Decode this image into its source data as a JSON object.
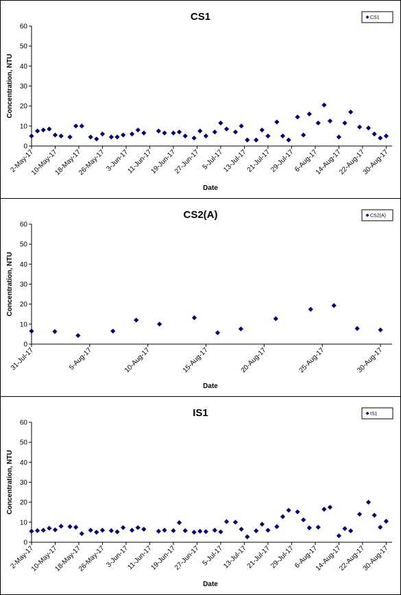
{
  "chart_data": [
    {
      "type": "scatter",
      "title": "CS1",
      "xlabel": "Date",
      "ylabel": "Concentration, NTU",
      "ylim": [
        0,
        60
      ],
      "yticks": [
        "0",
        "10",
        "20",
        "30",
        "40",
        "50",
        "60"
      ],
      "xlim": [
        "2-May-17",
        "1-Sep-17"
      ],
      "xticks": [
        "2-May-17",
        "10-May-17",
        "18-May-17",
        "26-May-17",
        "3-Jun-17",
        "11-Jun-17",
        "19-Jun-17",
        "27-Jun-17",
        "5-Jul-17",
        "13-Jul-17",
        "21-Jul-17",
        "29-Jul-17",
        "6-Aug-17",
        "14-Aug-17",
        "22-Aug-17",
        "30-Aug-17"
      ],
      "legend": "top-right",
      "grid": false,
      "color": "#000080",
      "series": [
        {
          "name": "CS1",
          "points": [
            [
              "2-May-17",
              5.0
            ],
            [
              "4-May-17",
              7.5
            ],
            [
              "6-May-17",
              8.0
            ],
            [
              "8-May-17",
              8.5
            ],
            [
              "10-May-17",
              5.5
            ],
            [
              "12-May-17",
              5.0
            ],
            [
              "15-May-17",
              4.5
            ],
            [
              "17-May-17",
              10.0
            ],
            [
              "19-May-17",
              10.0
            ],
            [
              "22-May-17",
              4.5
            ],
            [
              "24-May-17",
              3.5
            ],
            [
              "26-May-17",
              6.0
            ],
            [
              "29-May-17",
              4.5
            ],
            [
              "31-May-17",
              4.5
            ],
            [
              "2-Jun-17",
              5.5
            ],
            [
              "5-Jun-17",
              6.0
            ],
            [
              "7-Jun-17",
              8.0
            ],
            [
              "9-Jun-17",
              6.5
            ],
            [
              "14-Jun-17",
              7.5
            ],
            [
              "16-Jun-17",
              6.5
            ],
            [
              "19-Jun-17",
              6.5
            ],
            [
              "21-Jun-17",
              7.0
            ],
            [
              "23-Jun-17",
              5.0
            ],
            [
              "26-Jun-17",
              4.0
            ],
            [
              "28-Jun-17",
              7.5
            ],
            [
              "30-Jun-17",
              5.0
            ],
            [
              "3-Jul-17",
              7.0
            ],
            [
              "5-Jul-17",
              11.5
            ],
            [
              "7-Jul-17",
              8.5
            ],
            [
              "10-Jul-17",
              7.0
            ],
            [
              "12-Jul-17",
              10.0
            ],
            [
              "14-Jul-17",
              3.0
            ],
            [
              "17-Jul-17",
              3.0
            ],
            [
              "19-Jul-17",
              8.0
            ],
            [
              "21-Jul-17",
              5.0
            ],
            [
              "24-Jul-17",
              12.0
            ],
            [
              "26-Jul-17",
              5.0
            ],
            [
              "28-Jul-17",
              3.0
            ],
            [
              "31-Jul-17",
              14.5
            ],
            [
              "2-Aug-17",
              5.5
            ],
            [
              "4-Aug-17",
              16.0
            ],
            [
              "7-Aug-17",
              11.5
            ],
            [
              "9-Aug-17",
              20.5
            ],
            [
              "11-Aug-17",
              12.5
            ],
            [
              "14-Aug-17",
              4.5
            ],
            [
              "16-Aug-17",
              11.5
            ],
            [
              "18-Aug-17",
              17.0
            ],
            [
              "21-Aug-17",
              9.5
            ],
            [
              "24-Aug-17",
              9.0
            ],
            [
              "26-Aug-17",
              6.0
            ],
            [
              "28-Aug-17",
              4.0
            ],
            [
              "30-Aug-17",
              5.0
            ]
          ]
        }
      ]
    },
    {
      "type": "scatter",
      "title": "CS2(A)",
      "xlabel": "Date",
      "ylabel": "Concentration, NTU",
      "ylim": [
        0,
        60
      ],
      "yticks": [
        "0",
        "10",
        "20",
        "30",
        "40",
        "50",
        "60"
      ],
      "xlim": [
        "31-Jul-17",
        "31-Aug-17"
      ],
      "xticks": [
        "31-Jul-17",
        "5-Aug-17",
        "10-Aug-17",
        "15-Aug-17",
        "20-Aug-17",
        "25-Aug-17",
        "30-Aug-17"
      ],
      "legend": "top-right",
      "grid": false,
      "color": "#000080",
      "series": [
        {
          "name": "CS2(A)",
          "points": [
            [
              "31-Jul-17",
              6.5
            ],
            [
              "2-Aug-17",
              6.3
            ],
            [
              "4-Aug-17",
              4.3
            ],
            [
              "7-Aug-17",
              6.5
            ],
            [
              "9-Aug-17",
              12.0
            ],
            [
              "11-Aug-17",
              10.0
            ],
            [
              "14-Aug-17",
              13.2
            ],
            [
              "16-Aug-17",
              5.7
            ],
            [
              "18-Aug-17",
              7.6
            ],
            [
              "21-Aug-17",
              12.7
            ],
            [
              "24-Aug-17",
              17.4
            ],
            [
              "26-Aug-17",
              19.3
            ],
            [
              "28-Aug-17",
              7.8
            ],
            [
              "30-Aug-17",
              7.1
            ]
          ]
        }
      ]
    },
    {
      "type": "scatter",
      "title": "IS1",
      "xlabel": "Date",
      "ylabel": "Concentration, NTU",
      "ylim": [
        0,
        60
      ],
      "yticks": [
        "0",
        "10",
        "20",
        "30",
        "40",
        "50",
        "60"
      ],
      "xlim": [
        "2-May-17",
        "1-Sep-17"
      ],
      "xticks": [
        "2-May-17",
        "10-May-17",
        "18-May-17",
        "26-May-17",
        "3-Jun-17",
        "11-Jun-17",
        "19-Jun-17",
        "27-Jun-17",
        "5-Jul-17",
        "13-Jul-17",
        "21-Jul-17",
        "29-Jul-17",
        "6-Aug-17",
        "14-Aug-17",
        "22-Aug-17",
        "30-Aug-17"
      ],
      "legend": "top-right",
      "grid": false,
      "color": "#000080",
      "series": [
        {
          "name": "IS1",
          "points": [
            [
              "2-May-17",
              5.5
            ],
            [
              "4-May-17",
              5.8
            ],
            [
              "6-May-17",
              6.0
            ],
            [
              "8-May-17",
              7.0
            ],
            [
              "10-May-17",
              6.2
            ],
            [
              "12-May-17",
              8.0
            ],
            [
              "15-May-17",
              7.8
            ],
            [
              "17-May-17",
              7.5
            ],
            [
              "19-May-17",
              4.3
            ],
            [
              "22-May-17",
              6.0
            ],
            [
              "24-May-17",
              5.0
            ],
            [
              "26-May-17",
              6.0
            ],
            [
              "29-May-17",
              5.8
            ],
            [
              "31-May-17",
              5.2
            ],
            [
              "2-Jun-17",
              7.3
            ],
            [
              "5-Jun-17",
              6.0
            ],
            [
              "7-Jun-17",
              7.3
            ],
            [
              "9-Jun-17",
              6.5
            ],
            [
              "14-Jun-17",
              5.5
            ],
            [
              "16-Jun-17",
              6.0
            ],
            [
              "19-Jun-17",
              5.8
            ],
            [
              "21-Jun-17",
              9.8
            ],
            [
              "23-Jun-17",
              5.8
            ],
            [
              "26-Jun-17",
              5.0
            ],
            [
              "28-Jun-17",
              5.5
            ],
            [
              "30-Jun-17",
              5.3
            ],
            [
              "3-Jul-17",
              6.0
            ],
            [
              "5-Jul-17",
              5.2
            ],
            [
              "7-Jul-17",
              10.3
            ],
            [
              "10-Jul-17",
              10.0
            ],
            [
              "12-Jul-17",
              6.5
            ],
            [
              "14-Jul-17",
              2.7
            ],
            [
              "17-Jul-17",
              5.7
            ],
            [
              "19-Jul-17",
              9.0
            ],
            [
              "21-Jul-17",
              6.0
            ],
            [
              "24-Jul-17",
              7.8
            ],
            [
              "26-Jul-17",
              12.8
            ],
            [
              "28-Jul-17",
              16.0
            ],
            [
              "31-Jul-17",
              15.2
            ],
            [
              "2-Aug-17",
              11.2
            ],
            [
              "4-Aug-17",
              7.2
            ],
            [
              "7-Aug-17",
              7.5
            ],
            [
              "9-Aug-17",
              16.5
            ],
            [
              "11-Aug-17",
              17.5
            ],
            [
              "14-Aug-17",
              3.2
            ],
            [
              "16-Aug-17",
              6.8
            ],
            [
              "18-Aug-17",
              5.7
            ],
            [
              "21-Aug-17",
              14.0
            ],
            [
              "24-Aug-17",
              20.0
            ],
            [
              "26-Aug-17",
              13.5
            ],
            [
              "28-Aug-17",
              7.5
            ],
            [
              "30-Aug-17",
              10.5
            ]
          ]
        }
      ]
    }
  ]
}
